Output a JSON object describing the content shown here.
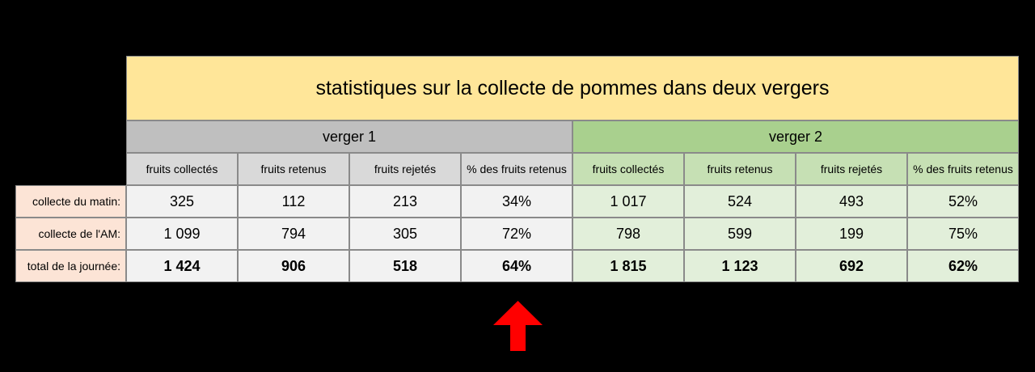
{
  "title": "statistiques sur la collecte de pommes dans deux vergers",
  "groups": [
    "verger 1",
    "verger 2"
  ],
  "columns": [
    "fruits collectés",
    "fruits retenus",
    "fruits rejetés",
    "% des fruits retenus"
  ],
  "rows": [
    {
      "label": "collecte du matin:",
      "values": [
        "325",
        "112",
        "213",
        "34%",
        "1 017",
        "524",
        "493",
        "52%"
      ],
      "bold": false
    },
    {
      "label": "collecte de l'AM:",
      "values": [
        "1 099",
        "794",
        "305",
        "72%",
        "798",
        "599",
        "199",
        "75%"
      ],
      "bold": false
    },
    {
      "label": "total de la journée:",
      "values": [
        "1 424",
        "906",
        "518",
        "64%",
        "1 815",
        "1 123",
        "692",
        "62%"
      ],
      "bold": true
    }
  ],
  "colors": {
    "title_bg": "#FFE699",
    "group1_bg": "#BFBFBF",
    "group1_header_bg": "#D9D9D9",
    "group1_cell_bg": "#F2F2F2",
    "group2_bg": "#A9D08E",
    "group2_header_bg": "#C6E0B4",
    "group2_cell_bg": "#E2EFDA",
    "rowlabel_bg": "#FCE4D6",
    "arrow": "#FF0000"
  },
  "icons": {
    "arrow": "red-up-arrow-icon"
  }
}
